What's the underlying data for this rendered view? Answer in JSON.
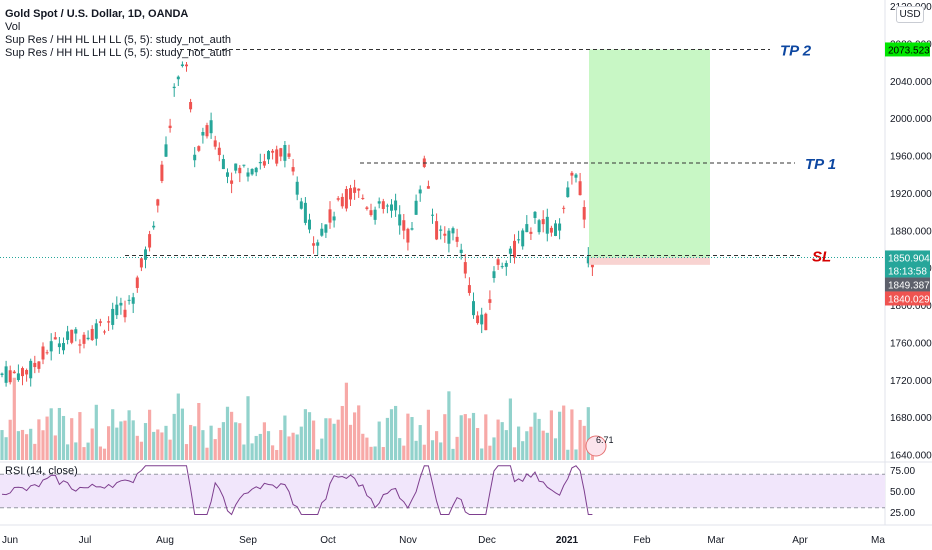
{
  "legend": {
    "line1": "Gold Spot / U.S. Dollar, 1D, OANDA",
    "line2": "Vol",
    "line3": "Sup Res / HH HL LH LL (5, 5): study_not_auth",
    "line4": "Sup Res / HH HL LH LL (5, 5): study_not_auth"
  },
  "currency_button": "USD",
  "rsi_label": "RSI (14, close)",
  "volume_badge": "6.71",
  "colors": {
    "up": "#26a69a",
    "down": "#ef5350",
    "tp_zone": "#c8f7c5",
    "sl_zone": "#f8d3d1",
    "rsi_line": "#7e3f8f",
    "rsi_band": "#f1e6fb",
    "tp_text": "#0d47a1",
    "sl_text": "#d50000"
  },
  "chart_data": {
    "type": "candlestick",
    "title": "Gold Spot / U.S. Dollar, 1D, OANDA",
    "yticks": [
      "2120.000",
      "2080.000",
      "2040.000",
      "2000.000",
      "1960.000",
      "1920.000",
      "1880.000",
      "1840.000",
      "1800.000",
      "1760.000",
      "1720.000",
      "1680.000",
      "1640.000"
    ],
    "ylim": [
      1632,
      2120
    ],
    "xticks": [
      "Jun",
      "Jul",
      "Aug",
      "Sep",
      "Oct",
      "Nov",
      "Dec",
      "2021",
      "Feb",
      "Mar",
      "Apr",
      "Ma"
    ],
    "price_badges": [
      {
        "value": "2073.523",
        "price": 2073.5,
        "color": "#00e600",
        "text": "#000000"
      },
      {
        "value": "1850.904",
        "price": 1850.9,
        "color": "#26a69a",
        "text": "#ffffff"
      },
      {
        "value": "18:13:58",
        "price": 1837,
        "color": "#26a69a",
        "text": "#ffffff"
      },
      {
        "value": "1849.387",
        "price": 1822,
        "color": "#5d606b",
        "text": "#ffffff"
      },
      {
        "value": "1840.029",
        "price": 1807,
        "color": "#ef5350",
        "text": "#ffffff"
      }
    ],
    "levels": [
      {
        "label": "TP 2",
        "price": 2073.5
      },
      {
        "label": "TP 1",
        "price": 1952
      },
      {
        "label": "SL",
        "price": 1853
      }
    ],
    "tp_zone": {
      "from": 1850.9,
      "to": 2073.5
    },
    "sl_zone": {
      "from": 1843,
      "to": 1850.9
    },
    "rsi": {
      "label": "RSI (14, close)",
      "ticks": [
        "75.00",
        "50.00",
        "25.00"
      ],
      "upper": 70,
      "lower": 30
    },
    "x_months": [
      {
        "label": "Jun",
        "year": 2020
      },
      {
        "label": "Jul",
        "year": 2020
      },
      {
        "label": "Aug",
        "year": 2020
      },
      {
        "label": "Sep",
        "year": 2020
      },
      {
        "label": "Oct",
        "year": 2020
      },
      {
        "label": "Nov",
        "year": 2020
      },
      {
        "label": "Dec",
        "year": 2020
      },
      {
        "label": "2021",
        "year": 2021
      },
      {
        "label": "Feb",
        "year": 2021
      },
      {
        "label": "Mar",
        "year": 2021
      },
      {
        "label": "Apr",
        "year": 2021
      },
      {
        "label": "Ma",
        "year": 2021
      }
    ],
    "key_closes": [
      {
        "x": "Jun",
        "y": 1725
      },
      {
        "x": "Jul",
        "y": 1770
      },
      {
        "x": "Aug",
        "y": 2065
      },
      {
        "x": "Sep",
        "y": 1975
      },
      {
        "x": "Oct",
        "y": 1885
      },
      {
        "x": "Nov",
        "y": 1940
      },
      {
        "x": "Dec",
        "y": 1775
      },
      {
        "x": "2021",
        "y": 1950
      },
      {
        "x": "last",
        "y": 1850.9
      }
    ]
  }
}
